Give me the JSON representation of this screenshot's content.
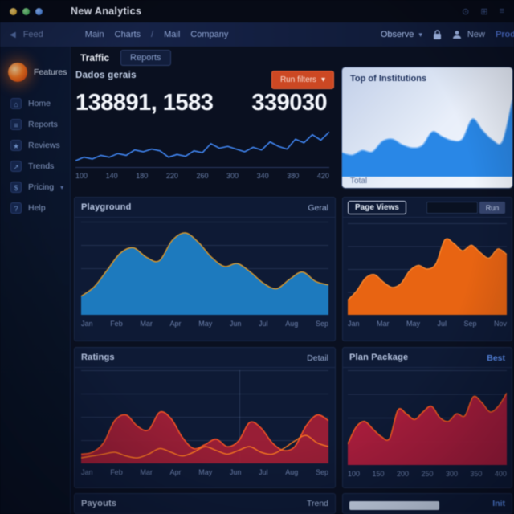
{
  "window": {
    "title": "New Analytics"
  },
  "titlebar_icons": [
    "⊙",
    "⊞",
    "≡"
  ],
  "navbar": {
    "back_icon": "◀",
    "back_label": "Feed",
    "breadcrumb": [
      "Main",
      "Charts",
      "/",
      "Mail",
      "Company"
    ],
    "observe_label": "Observe",
    "observe_caret": "▾",
    "new_label": "New",
    "partial_label": "Prod"
  },
  "sidebar": {
    "active_label": "Features",
    "items": [
      {
        "id": "home",
        "glyph": "⌂",
        "label": "Home"
      },
      {
        "id": "reports",
        "glyph": "≡",
        "label": "Reports"
      },
      {
        "id": "reviews",
        "glyph": "★",
        "label": "Reviews"
      },
      {
        "id": "trends",
        "glyph": "↗",
        "label": "Trends"
      },
      {
        "id": "pricing",
        "glyph": "$",
        "label": "Pricing",
        "caret": true
      },
      {
        "id": "help",
        "glyph": "?",
        "label": "Help"
      }
    ]
  },
  "tabs": {
    "traffic": "Traffic",
    "reports": "Reports"
  },
  "overview": {
    "title": "Dados gerais",
    "metric_primary": "138891, 1583",
    "metric_secondary": "339030",
    "filter_button": "Run filters",
    "filter_caret": "▾"
  },
  "insights_card": {
    "title": "Top of Institutions",
    "footer": "Total"
  },
  "panels": {
    "playground": {
      "title": "Playground",
      "link": "Geral"
    },
    "pageviews": {
      "badge": "Page Views",
      "button": "Run"
    },
    "ratings": {
      "title": "Ratings",
      "link": "Detail"
    },
    "plan": {
      "title": "Plan Package",
      "link": "Best"
    },
    "payouts": {
      "title": "Payouts",
      "link": "Trend"
    },
    "footer_right": {
      "link": "Init"
    }
  },
  "colors": {
    "accent_orange": "#c44a28",
    "sidebar_active_glow": "#f07a28",
    "line_blue": "#4585e8",
    "card_blue": "#2f86de",
    "area_teal": "#2379b8",
    "area_orange": "#e0661a",
    "area_crimson": "#9c2136",
    "stroke_warm": "#e8542a"
  },
  "chart_data": {
    "overview_line": {
      "type": "line",
      "smooth": false,
      "stroke": "#4585e8",
      "strokeWidth": 1.6,
      "values": [
        14,
        22,
        18,
        26,
        22,
        30,
        26,
        38,
        34,
        40,
        36,
        22,
        28,
        24,
        36,
        32,
        52,
        42,
        46,
        40,
        34,
        44,
        38,
        56,
        46,
        40,
        62,
        54,
        72,
        60,
        78
      ],
      "ticks": [
        "100",
        "140",
        "180",
        "220",
        "260",
        "300",
        "340",
        "380",
        "420"
      ],
      "ylim": [
        0,
        100
      ]
    },
    "insights_area": {
      "type": "area",
      "fill": "#2f86de",
      "stroke": "#7fb5ef",
      "strokeWidth": 1.5,
      "values": [
        30,
        27,
        33,
        31,
        44,
        47,
        40,
        36,
        39,
        56,
        50,
        45,
        47,
        72,
        58,
        46,
        44,
        96
      ]
    },
    "playground_area": {
      "type": "area",
      "fill": "#2379b8",
      "stroke": "#d99a33",
      "strokeWidth": 1.4,
      "values": [
        20,
        30,
        48,
        66,
        72,
        62,
        58,
        80,
        88,
        78,
        62,
        52,
        55,
        46,
        34,
        28,
        38,
        46,
        36,
        32
      ],
      "ticks": [
        "Jan",
        "Feb",
        "Mar",
        "Apr",
        "May",
        "Jun",
        "Jul",
        "Aug",
        "Sep"
      ]
    },
    "pageviews_area": {
      "type": "area",
      "fill": "#e0661a",
      "stroke": "#f58a35",
      "strokeWidth": 1.4,
      "values": [
        16,
        26,
        40,
        44,
        36,
        30,
        34,
        48,
        54,
        50,
        56,
        82,
        78,
        70,
        76,
        68,
        62,
        72,
        66
      ],
      "ticks": [
        "Jan",
        "Mar",
        "May",
        "Jul",
        "Sep",
        "Nov"
      ]
    },
    "ratings_area": {
      "type": "area",
      "fill": "#9c2136",
      "fillOpacity": 0.92,
      "stroke": "#e8542a",
      "strokeWidth": 1.6,
      "values": [
        10,
        12,
        22,
        46,
        52,
        40,
        36,
        55,
        48,
        28,
        16,
        20,
        26,
        18,
        24,
        44,
        38,
        22,
        14,
        18,
        40,
        52,
        46
      ],
      "line2": [
        6,
        8,
        10,
        12,
        8,
        6,
        10,
        16,
        12,
        8,
        12,
        18,
        14,
        10,
        14,
        18,
        12,
        10,
        16,
        24,
        30,
        22,
        18
      ],
      "line2_color": "#f07a28",
      "ticks": [
        "Jan",
        "Feb",
        "Mar",
        "Apr",
        "May",
        "Jun",
        "Jul",
        "Aug",
        "Sep"
      ]
    },
    "plan_area": {
      "type": "area",
      "fill": "#a8203d",
      "fillOpacity": 0.95,
      "stroke": "#e55a24",
      "strokeWidth": 1.6,
      "values": [
        22,
        40,
        46,
        38,
        30,
        28,
        58,
        54,
        48,
        56,
        62,
        50,
        46,
        54,
        52,
        72,
        66,
        56,
        62,
        76
      ],
      "ticks": [
        "100",
        "150",
        "200",
        "250",
        "300",
        "350",
        "400"
      ]
    }
  }
}
